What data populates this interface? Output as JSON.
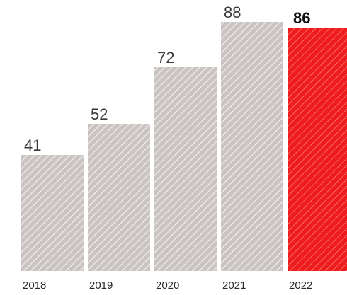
{
  "chart_data": {
    "type": "bar",
    "categories": [
      "2018",
      "2019",
      "2020",
      "2021",
      "2022"
    ],
    "values": [
      41,
      52,
      72,
      88,
      86
    ],
    "value_labels": [
      "41",
      "52",
      "72",
      "88",
      "86"
    ],
    "highlight_index": 4,
    "ylim": [
      0,
      100
    ],
    "grid": false,
    "legend": "none",
    "title": "",
    "xlabel": "",
    "ylabel": ""
  },
  "colors": {
    "bar": "#c9c3c1",
    "bar_hatch": "#ece8e6",
    "highlight": "#ee1c1c",
    "highlight_hatch": "#f76a6a"
  }
}
